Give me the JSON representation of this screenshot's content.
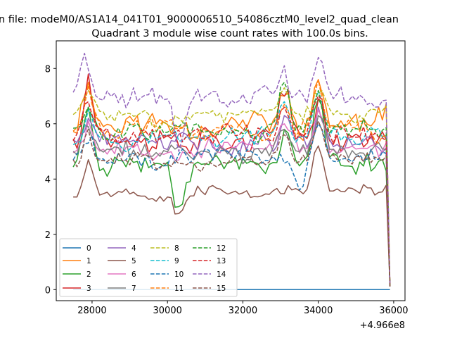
{
  "chart_data": {
    "type": "line",
    "suptitle": "n file: modeM0/AS1A14_041T01_9000006510_54086cztM0_level2_quad_clean",
    "title": "Quadrant 3 module wise count rates with 100.0s bins.",
    "xlabel": "",
    "ylabel": "",
    "x_offset_label": "+4.966e8",
    "xlim": [
      27050,
      36300
    ],
    "ylim": [
      -0.4,
      9.0
    ],
    "xticks": [
      28000,
      30000,
      32000,
      34000,
      36000
    ],
    "xtick_labels": [
      "28000",
      "30000",
      "32000",
      "34000",
      "36000"
    ],
    "yticks": [
      0,
      2,
      4,
      6,
      8
    ],
    "ytick_labels": [
      "0",
      "2",
      "4",
      "6",
      "8"
    ],
    "x_start": 27500,
    "x_step": 100,
    "x_end_main": 35800,
    "x_end_drop": 35900,
    "legend_position": "lower-left",
    "legend_columns": 4,
    "series": [
      {
        "name": "0",
        "color": "#1f77b4",
        "dash": "solid",
        "flat": 0.0
      },
      {
        "name": "1",
        "color": "#ff7f0e",
        "dash": "solid",
        "base": 6.0,
        "amp": 0.6,
        "seed": 11,
        "peaks": [
          [
            27900,
            7.5
          ],
          [
            33100,
            7.0
          ],
          [
            34000,
            7.6
          ]
        ]
      },
      {
        "name": "2",
        "color": "#2ca02c",
        "dash": "solid",
        "base": 4.6,
        "amp": 0.45,
        "seed": 23,
        "peaks": [
          [
            27900,
            6.6
          ],
          [
            30300,
            3.0
          ],
          [
            33100,
            5.8
          ],
          [
            34000,
            6.9
          ]
        ]
      },
      {
        "name": "3",
        "color": "#d62728",
        "dash": "solid",
        "base": 5.5,
        "amp": 0.55,
        "seed": 37,
        "peaks": [
          [
            27900,
            7.8
          ],
          [
            33100,
            7.0
          ],
          [
            34000,
            6.9
          ]
        ]
      },
      {
        "name": "4",
        "color": "#9467bd",
        "dash": "solid",
        "base": 5.3,
        "amp": 0.45,
        "seed": 41,
        "peaks": [
          [
            27900,
            6.2
          ],
          [
            33100,
            6.3
          ],
          [
            34000,
            6.6
          ]
        ]
      },
      {
        "name": "5",
        "color": "#8c564b",
        "dash": "solid",
        "base": 3.55,
        "amp": 0.3,
        "seed": 53,
        "peaks": [
          [
            27500,
            3.35
          ],
          [
            27900,
            4.7
          ],
          [
            30300,
            2.75
          ],
          [
            34000,
            5.2
          ]
        ]
      },
      {
        "name": "6",
        "color": "#e377c2",
        "dash": "solid",
        "base": 5.1,
        "amp": 0.4,
        "seed": 67,
        "peaks": [
          [
            27900,
            6.1
          ],
          [
            33100,
            6.0
          ],
          [
            34000,
            6.5
          ]
        ]
      },
      {
        "name": "7",
        "color": "#7f7f7f",
        "dash": "solid",
        "base": 5.0,
        "amp": 0.4,
        "seed": 71,
        "peaks": [
          [
            27900,
            5.9
          ],
          [
            33100,
            5.8
          ],
          [
            34000,
            6.3
          ]
        ]
      },
      {
        "name": "8",
        "color": "#bcbd22",
        "dash": "dashed",
        "base": 6.3,
        "amp": 0.35,
        "seed": 83,
        "peaks": [
          [
            27900,
            7.2
          ],
          [
            33100,
            7.3
          ],
          [
            34000,
            7.1
          ]
        ]
      },
      {
        "name": "9",
        "color": "#17becf",
        "dash": "dashed",
        "base": 5.5,
        "amp": 0.4,
        "seed": 97,
        "peaks": [
          [
            27900,
            6.5
          ],
          [
            33100,
            6.8
          ],
          [
            34000,
            7.2
          ]
        ]
      },
      {
        "name": "10",
        "color": "#1f77b4",
        "dash": "dashed",
        "base": 4.8,
        "amp": 0.4,
        "seed": 101,
        "peaks": [
          [
            27900,
            5.3
          ],
          [
            33500,
            3.6
          ],
          [
            34000,
            6.0
          ]
        ]
      },
      {
        "name": "11",
        "color": "#ff7f0e",
        "dash": "dashed",
        "base": 5.8,
        "amp": 0.4,
        "seed": 113,
        "peaks": [
          [
            27900,
            7.4
          ],
          [
            33100,
            6.7
          ],
          [
            34000,
            7.6
          ]
        ]
      },
      {
        "name": "12",
        "color": "#2ca02c",
        "dash": "dashed",
        "base": 5.8,
        "amp": 0.4,
        "seed": 127,
        "peaks": [
          [
            27900,
            6.6
          ],
          [
            33100,
            7.5
          ],
          [
            34000,
            7.2
          ]
        ]
      },
      {
        "name": "13",
        "color": "#d62728",
        "dash": "dashed",
        "base": 5.6,
        "amp": 0.4,
        "seed": 131,
        "peaks": [
          [
            27900,
            6.8
          ],
          [
            33100,
            6.6
          ],
          [
            34000,
            7.0
          ]
        ]
      },
      {
        "name": "14",
        "color": "#9467bd",
        "dash": "dashed",
        "base": 7.0,
        "amp": 0.45,
        "seed": 149,
        "peaks": [
          [
            27800,
            8.55
          ],
          [
            30300,
            5.0
          ],
          [
            33100,
            8.1
          ],
          [
            34000,
            8.4
          ]
        ]
      },
      {
        "name": "15",
        "color": "#8c564b",
        "dash": "dashed",
        "base": 4.6,
        "amp": 0.35,
        "seed": 151,
        "peaks": [
          [
            27900,
            5.8
          ],
          [
            33100,
            5.6
          ],
          [
            34000,
            6.1
          ]
        ]
      }
    ]
  }
}
